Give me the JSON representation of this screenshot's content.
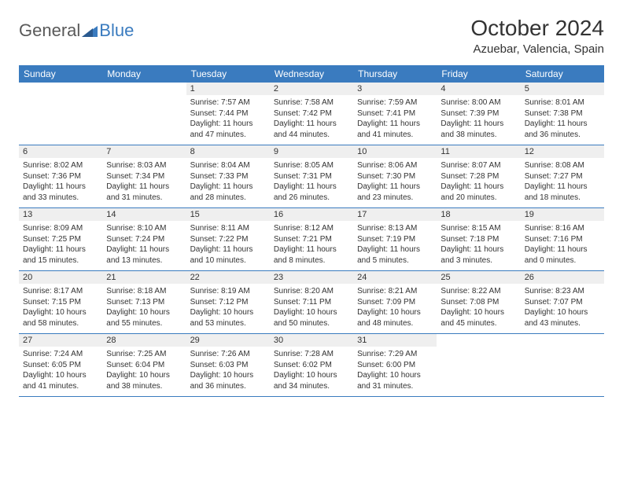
{
  "logo": {
    "part1": "General",
    "part2": "Blue"
  },
  "title": "October 2024",
  "location": "Azuebar, Valencia, Spain",
  "colors": {
    "header_bg": "#3a7bbf",
    "header_text": "#ffffff",
    "daynum_bg": "#efefef",
    "border": "#3a7bbf",
    "logo_gray": "#595959",
    "logo_blue": "#3a7bbf"
  },
  "day_names": [
    "Sunday",
    "Monday",
    "Tuesday",
    "Wednesday",
    "Thursday",
    "Friday",
    "Saturday"
  ],
  "weeks": [
    [
      null,
      null,
      {
        "d": "1",
        "sr": "7:57 AM",
        "ss": "7:44 PM",
        "dl": "11 hours and 47 minutes."
      },
      {
        "d": "2",
        "sr": "7:58 AM",
        "ss": "7:42 PM",
        "dl": "11 hours and 44 minutes."
      },
      {
        "d": "3",
        "sr": "7:59 AM",
        "ss": "7:41 PM",
        "dl": "11 hours and 41 minutes."
      },
      {
        "d": "4",
        "sr": "8:00 AM",
        "ss": "7:39 PM",
        "dl": "11 hours and 38 minutes."
      },
      {
        "d": "5",
        "sr": "8:01 AM",
        "ss": "7:38 PM",
        "dl": "11 hours and 36 minutes."
      }
    ],
    [
      {
        "d": "6",
        "sr": "8:02 AM",
        "ss": "7:36 PM",
        "dl": "11 hours and 33 minutes."
      },
      {
        "d": "7",
        "sr": "8:03 AM",
        "ss": "7:34 PM",
        "dl": "11 hours and 31 minutes."
      },
      {
        "d": "8",
        "sr": "8:04 AM",
        "ss": "7:33 PM",
        "dl": "11 hours and 28 minutes."
      },
      {
        "d": "9",
        "sr": "8:05 AM",
        "ss": "7:31 PM",
        "dl": "11 hours and 26 minutes."
      },
      {
        "d": "10",
        "sr": "8:06 AM",
        "ss": "7:30 PM",
        "dl": "11 hours and 23 minutes."
      },
      {
        "d": "11",
        "sr": "8:07 AM",
        "ss": "7:28 PM",
        "dl": "11 hours and 20 minutes."
      },
      {
        "d": "12",
        "sr": "8:08 AM",
        "ss": "7:27 PM",
        "dl": "11 hours and 18 minutes."
      }
    ],
    [
      {
        "d": "13",
        "sr": "8:09 AM",
        "ss": "7:25 PM",
        "dl": "11 hours and 15 minutes."
      },
      {
        "d": "14",
        "sr": "8:10 AM",
        "ss": "7:24 PM",
        "dl": "11 hours and 13 minutes."
      },
      {
        "d": "15",
        "sr": "8:11 AM",
        "ss": "7:22 PM",
        "dl": "11 hours and 10 minutes."
      },
      {
        "d": "16",
        "sr": "8:12 AM",
        "ss": "7:21 PM",
        "dl": "11 hours and 8 minutes."
      },
      {
        "d": "17",
        "sr": "8:13 AM",
        "ss": "7:19 PM",
        "dl": "11 hours and 5 minutes."
      },
      {
        "d": "18",
        "sr": "8:15 AM",
        "ss": "7:18 PM",
        "dl": "11 hours and 3 minutes."
      },
      {
        "d": "19",
        "sr": "8:16 AM",
        "ss": "7:16 PM",
        "dl": "11 hours and 0 minutes."
      }
    ],
    [
      {
        "d": "20",
        "sr": "8:17 AM",
        "ss": "7:15 PM",
        "dl": "10 hours and 58 minutes."
      },
      {
        "d": "21",
        "sr": "8:18 AM",
        "ss": "7:13 PM",
        "dl": "10 hours and 55 minutes."
      },
      {
        "d": "22",
        "sr": "8:19 AM",
        "ss": "7:12 PM",
        "dl": "10 hours and 53 minutes."
      },
      {
        "d": "23",
        "sr": "8:20 AM",
        "ss": "7:11 PM",
        "dl": "10 hours and 50 minutes."
      },
      {
        "d": "24",
        "sr": "8:21 AM",
        "ss": "7:09 PM",
        "dl": "10 hours and 48 minutes."
      },
      {
        "d": "25",
        "sr": "8:22 AM",
        "ss": "7:08 PM",
        "dl": "10 hours and 45 minutes."
      },
      {
        "d": "26",
        "sr": "8:23 AM",
        "ss": "7:07 PM",
        "dl": "10 hours and 43 minutes."
      }
    ],
    [
      {
        "d": "27",
        "sr": "7:24 AM",
        "ss": "6:05 PM",
        "dl": "10 hours and 41 minutes."
      },
      {
        "d": "28",
        "sr": "7:25 AM",
        "ss": "6:04 PM",
        "dl": "10 hours and 38 minutes."
      },
      {
        "d": "29",
        "sr": "7:26 AM",
        "ss": "6:03 PM",
        "dl": "10 hours and 36 minutes."
      },
      {
        "d": "30",
        "sr": "7:28 AM",
        "ss": "6:02 PM",
        "dl": "10 hours and 34 minutes."
      },
      {
        "d": "31",
        "sr": "7:29 AM",
        "ss": "6:00 PM",
        "dl": "10 hours and 31 minutes."
      },
      null,
      null
    ]
  ],
  "labels": {
    "sunrise": "Sunrise:",
    "sunset": "Sunset:",
    "daylight": "Daylight:"
  }
}
